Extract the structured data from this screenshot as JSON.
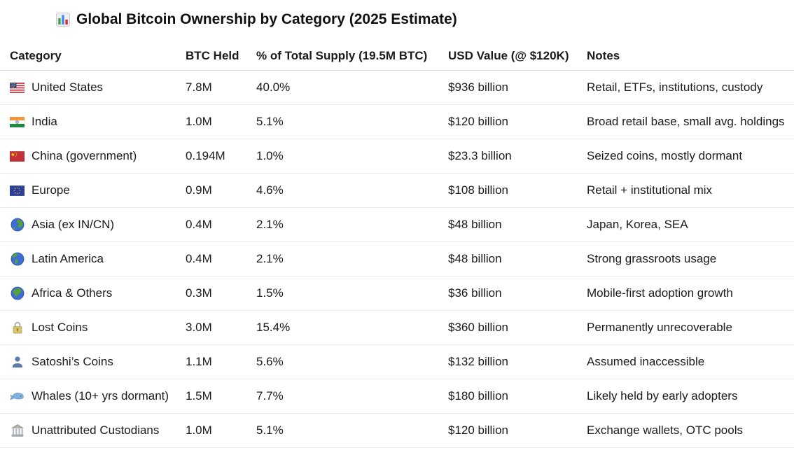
{
  "title": {
    "icon": "bar-chart-icon",
    "text": "Global Bitcoin Ownership by Category (2025 Estimate)"
  },
  "table": {
    "headers": [
      "Category",
      "BTC Held",
      "% of Total Supply (19.5M BTC)",
      "USD Value (@ $120K)",
      "Notes"
    ],
    "rows": [
      {
        "icon": "us-flag-icon",
        "category": "United States",
        "btc_held": "7.8M",
        "pct_supply": "40.0%",
        "usd_value": "$936 billion",
        "notes": "Retail, ETFs, institutions, custody"
      },
      {
        "icon": "india-flag-icon",
        "category": "India",
        "btc_held": "1.0M",
        "pct_supply": "5.1%",
        "usd_value": "$120 billion",
        "notes": "Broad retail base, small avg. holdings"
      },
      {
        "icon": "china-flag-icon",
        "category": "China (government)",
        "btc_held": "0.194M",
        "pct_supply": "1.0%",
        "usd_value": "$23.3 billion",
        "notes": "Seized coins, mostly dormant"
      },
      {
        "icon": "eu-flag-icon",
        "category": "Europe",
        "btc_held": "0.9M",
        "pct_supply": "4.6%",
        "usd_value": "$108 billion",
        "notes": "Retail + institutional mix"
      },
      {
        "icon": "globe-asia-icon",
        "category": "Asia (ex IN/CN)",
        "btc_held": "0.4M",
        "pct_supply": "2.1%",
        "usd_value": "$48 billion",
        "notes": "Japan, Korea, SEA"
      },
      {
        "icon": "globe-americas-icon",
        "category": "Latin America",
        "btc_held": "0.4M",
        "pct_supply": "2.1%",
        "usd_value": "$48 billion",
        "notes": "Strong grassroots usage"
      },
      {
        "icon": "globe-africa-icon",
        "category": "Africa & Others",
        "btc_held": "0.3M",
        "pct_supply": "1.5%",
        "usd_value": "$36 billion",
        "notes": "Mobile-first adoption growth"
      },
      {
        "icon": "lock-icon",
        "category": "Lost Coins",
        "btc_held": "3.0M",
        "pct_supply": "15.4%",
        "usd_value": "$360 billion",
        "notes": "Permanently unrecoverable"
      },
      {
        "icon": "person-silhouette-icon",
        "category": "Satoshi’s Coins",
        "btc_held": "1.1M",
        "pct_supply": "5.6%",
        "usd_value": "$132 billion",
        "notes": "Assumed inaccessible"
      },
      {
        "icon": "whale-icon",
        "category": "Whales (10+ yrs dormant)",
        "btc_held": "1.5M",
        "pct_supply": "7.7%",
        "usd_value": "$180 billion",
        "notes": "Likely held by early adopters"
      },
      {
        "icon": "bank-icon",
        "category": "Unattributed Custodians",
        "btc_held": "1.0M",
        "pct_supply": "5.1%",
        "usd_value": "$120 billion",
        "notes": "Exchange wallets, OTC pools"
      }
    ]
  },
  "colors": {
    "background": "#ffffff",
    "text": "#1b1b1d",
    "header_border": "#d9d9d9",
    "row_border": "#ececec"
  }
}
